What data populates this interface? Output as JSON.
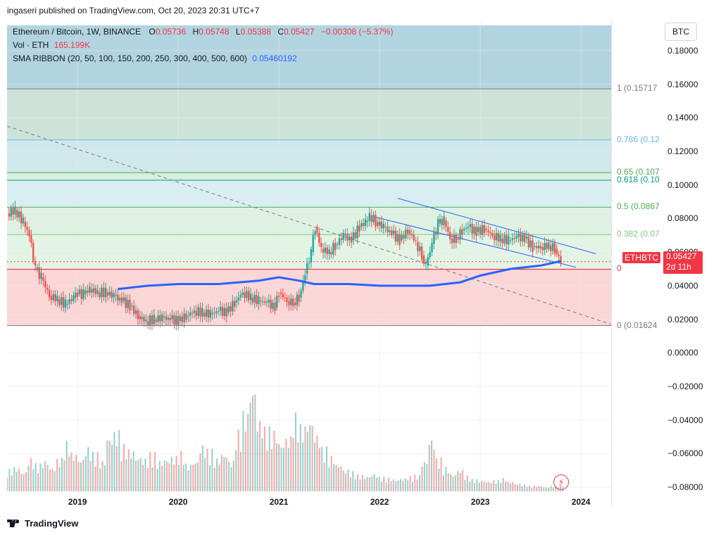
{
  "publish_line": "ingaseri published on TradingView.com, Oct 20, 2023 20:31 UTC+7",
  "header": {
    "symbol": "Ethereum / Bitcoin, 1W, BINANCE",
    "o_label": "O",
    "o_value": "0.05736",
    "h_label": "H",
    "h_value": "0.05748",
    "l_label": "L",
    "l_value": "0.05388",
    "c_label": "C",
    "c_value": "0.05427",
    "change": "−0.00308 (−5.37%)",
    "vol_label": "Vol · ETH",
    "vol_value": "165.199K",
    "sma_label": "SMA RIBBON (20, 50, 100, 150, 200, 250, 300, 400, 500, 600)",
    "sma_value": "0.05460192"
  },
  "scale_button": "BTC",
  "price_tag": {
    "symbol": "ETHBTC",
    "price": "0.05427",
    "countdown": "2d 11h"
  },
  "fib_labels": [
    {
      "text": "1 (0.15717",
      "color": "#787b86",
      "price": 0.15717
    },
    {
      "text": "0.786 (0.12",
      "color": "#64b5f6",
      "price": 0.1268
    },
    {
      "text": "0.65 (0.107",
      "color": "#4caf50",
      "price": 0.1073
    },
    {
      "text": "0.618 (0.10",
      "color": "#089981",
      "price": 0.1028
    },
    {
      "text": "0.5 (0.0867",
      "color": "#4caf50",
      "price": 0.0867
    },
    {
      "text": "0.382 (0.07",
      "color": "#81c784",
      "price": 0.0705
    },
    {
      "text": "0",
      "color": "#f23645",
      "price": 0.0498
    },
    {
      "text": "0 (0.01624",
      "color": "#787b86",
      "price": 0.01624
    }
  ],
  "footer": {
    "brand": "TradingView"
  },
  "colors": {
    "up": "#26a69a",
    "down": "#ef5350",
    "sma": "#2962ff",
    "channel": "#2962ff",
    "trend": "#787b86"
  },
  "chart_data": {
    "type": "candlestick",
    "title": "Ethereum / Bitcoin, 1W, BINANCE",
    "x_ticks": [
      "2019",
      "2020",
      "2021",
      "2022",
      "2023",
      "2024"
    ],
    "y_ticks": [
      "0.18000",
      "0.16000",
      "0.14000",
      "0.12000",
      "0.10000",
      "0.08000",
      "0.06000",
      "0.04000",
      "0.02000",
      "0.00000",
      "−0.02000",
      "−0.04000",
      "−0.06000",
      "−0.08000"
    ],
    "ylim": [
      -0.095,
      0.195
    ],
    "xlim": [
      2018.3,
      2024.3
    ],
    "close_series": [
      [
        2018.3,
        0.083
      ],
      [
        2018.38,
        0.085
      ],
      [
        2018.46,
        0.078
      ],
      [
        2018.52,
        0.07
      ],
      [
        2018.58,
        0.05
      ],
      [
        2018.64,
        0.045
      ],
      [
        2018.72,
        0.034
      ],
      [
        2018.8,
        0.032
      ],
      [
        2018.88,
        0.029
      ],
      [
        2018.96,
        0.033
      ],
      [
        2019.0,
        0.035
      ],
      [
        2019.06,
        0.035
      ],
      [
        2019.12,
        0.038
      ],
      [
        2019.2,
        0.036
      ],
      [
        2019.28,
        0.036
      ],
      [
        2019.36,
        0.034
      ],
      [
        2019.44,
        0.031
      ],
      [
        2019.52,
        0.028
      ],
      [
        2019.6,
        0.022
      ],
      [
        2019.68,
        0.019
      ],
      [
        2019.76,
        0.02
      ],
      [
        2019.84,
        0.021
      ],
      [
        2019.92,
        0.02
      ],
      [
        2020.0,
        0.019
      ],
      [
        2020.08,
        0.022
      ],
      [
        2020.16,
        0.025
      ],
      [
        2020.24,
        0.024
      ],
      [
        2020.32,
        0.023
      ],
      [
        2020.4,
        0.025
      ],
      [
        2020.48,
        0.024
      ],
      [
        2020.56,
        0.03
      ],
      [
        2020.64,
        0.036
      ],
      [
        2020.72,
        0.033
      ],
      [
        2020.8,
        0.031
      ],
      [
        2020.88,
        0.03
      ],
      [
        2020.96,
        0.027
      ],
      [
        2021.0,
        0.036
      ],
      [
        2021.08,
        0.031
      ],
      [
        2021.14,
        0.03
      ],
      [
        2021.2,
        0.033
      ],
      [
        2021.26,
        0.047
      ],
      [
        2021.32,
        0.06
      ],
      [
        2021.36,
        0.075
      ],
      [
        2021.42,
        0.062
      ],
      [
        2021.5,
        0.06
      ],
      [
        2021.56,
        0.064
      ],
      [
        2021.64,
        0.07
      ],
      [
        2021.72,
        0.067
      ],
      [
        2021.8,
        0.075
      ],
      [
        2021.86,
        0.078
      ],
      [
        2021.9,
        0.082
      ],
      [
        2021.96,
        0.078
      ],
      [
        2022.04,
        0.075
      ],
      [
        2022.12,
        0.071
      ],
      [
        2022.2,
        0.067
      ],
      [
        2022.28,
        0.073
      ],
      [
        2022.36,
        0.066
      ],
      [
        2022.42,
        0.058
      ],
      [
        2022.46,
        0.052
      ],
      [
        2022.52,
        0.065
      ],
      [
        2022.58,
        0.077
      ],
      [
        2022.64,
        0.079
      ],
      [
        2022.7,
        0.068
      ],
      [
        2022.76,
        0.068
      ],
      [
        2022.82,
        0.073
      ],
      [
        2022.88,
        0.075
      ],
      [
        2022.96,
        0.072
      ],
      [
        2023.04,
        0.074
      ],
      [
        2023.12,
        0.07
      ],
      [
        2023.2,
        0.068
      ],
      [
        2023.28,
        0.067
      ],
      [
        2023.36,
        0.069
      ],
      [
        2023.44,
        0.068
      ],
      [
        2023.52,
        0.063
      ],
      [
        2023.6,
        0.063
      ],
      [
        2023.68,
        0.064
      ],
      [
        2023.74,
        0.062
      ],
      [
        2023.8,
        0.054
      ]
    ],
    "sma_series": [
      [
        2019.4,
        0.038
      ],
      [
        2019.7,
        0.04
      ],
      [
        2020.0,
        0.041
      ],
      [
        2020.4,
        0.041
      ],
      [
        2020.8,
        0.043
      ],
      [
        2021.0,
        0.045
      ],
      [
        2021.2,
        0.043
      ],
      [
        2021.35,
        0.041
      ],
      [
        2021.7,
        0.041
      ],
      [
        2022.0,
        0.04
      ],
      [
        2022.5,
        0.04
      ],
      [
        2022.8,
        0.042
      ],
      [
        2023.0,
        0.046
      ],
      [
        2023.3,
        0.05
      ],
      [
        2023.6,
        0.052
      ],
      [
        2023.8,
        0.0546
      ]
    ],
    "volume_relative": [
      0.2,
      0.22,
      0.18,
      0.3,
      0.25,
      0.28,
      0.22,
      0.3,
      0.45,
      0.35,
      0.3,
      0.4,
      0.35,
      0.28,
      0.5,
      0.55,
      0.42,
      0.38,
      0.32,
      0.3,
      0.35,
      0.28,
      0.3,
      0.32,
      0.36,
      0.25,
      0.28,
      0.42,
      0.38,
      0.3,
      0.35,
      0.28,
      0.55,
      0.72,
      0.95,
      0.65,
      0.58,
      0.55,
      0.45,
      0.5,
      0.7,
      0.6,
      0.65,
      0.52,
      0.4,
      0.32,
      0.25,
      0.2,
      0.18,
      0.15,
      0.14,
      0.16,
      0.13,
      0.12,
      0.11,
      0.12,
      0.14,
      0.15,
      0.28,
      0.48,
      0.3,
      0.22,
      0.16,
      0.2,
      0.14,
      0.11,
      0.1,
      0.09,
      0.1,
      0.12,
      0.09,
      0.07,
      0.06,
      0.05,
      0.05,
      0.04,
      0.05,
      0.06
    ],
    "fib_levels": [
      {
        "level": "1",
        "price": 0.15717
      },
      {
        "level": "0.786",
        "price": 0.1268
      },
      {
        "level": "0.65",
        "price": 0.1073
      },
      {
        "level": "0.618",
        "price": 0.1028
      },
      {
        "level": "0.5",
        "price": 0.0867
      },
      {
        "level": "0.382",
        "price": 0.0705
      },
      {
        "level": "0",
        "price": 0.01624
      }
    ],
    "grid": true,
    "legend": "top-left"
  }
}
